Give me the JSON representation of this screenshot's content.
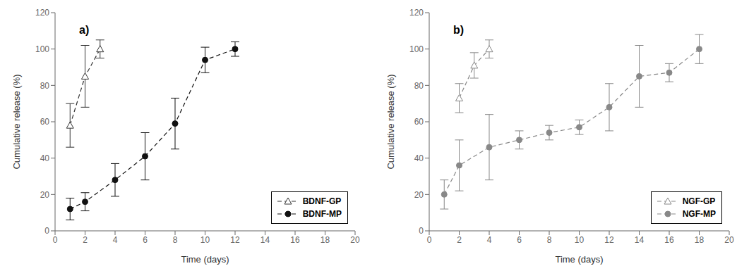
{
  "chart_data": [
    {
      "type": "line",
      "title": "a)",
      "xlabel": "Time (days)",
      "ylabel": "Cumulative release (%)",
      "xlim": [
        0,
        20
      ],
      "ylim": [
        0,
        120
      ],
      "xticks": [
        0,
        2,
        4,
        6,
        8,
        10,
        12,
        14,
        16,
        18,
        20
      ],
      "yticks": [
        0,
        20,
        40,
        60,
        80,
        100,
        120
      ],
      "grid": false,
      "legend": "lower right",
      "series": [
        {
          "name": "BDNF-GP",
          "color": "#333333",
          "marker": "triangle",
          "line_style": "dashed",
          "x": [
            1,
            2,
            3
          ],
          "values": [
            58,
            85,
            100
          ],
          "yerr": [
            12,
            17,
            5
          ]
        },
        {
          "name": "BDNF-MP",
          "color": "#111111",
          "marker": "circle",
          "line_style": "dashed",
          "x": [
            1,
            2,
            4,
            6,
            8,
            10,
            12
          ],
          "values": [
            12,
            16,
            28,
            41,
            59,
            94,
            100
          ],
          "yerr": [
            6,
            5,
            9,
            13,
            14,
            7,
            4
          ]
        }
      ]
    },
    {
      "type": "line",
      "title": "b)",
      "xlabel": "Time (days)",
      "ylabel": "Cumulative release (%)",
      "xlim": [
        0,
        20
      ],
      "ylim": [
        0,
        120
      ],
      "xticks": [
        0,
        2,
        4,
        6,
        8,
        10,
        12,
        14,
        16,
        18,
        20
      ],
      "yticks": [
        0,
        20,
        40,
        60,
        80,
        100,
        120
      ],
      "grid": false,
      "legend": "lower right",
      "series": [
        {
          "name": "NGF-GP",
          "color": "#888888",
          "marker": "triangle",
          "line_style": "dashed",
          "x": [
            2,
            3,
            4
          ],
          "values": [
            73,
            91,
            100
          ],
          "yerr": [
            8,
            7,
            5
          ]
        },
        {
          "name": "NGF-MP",
          "color": "#888888",
          "marker": "circle",
          "line_style": "dashed",
          "x": [
            1,
            2,
            4,
            6,
            8,
            10,
            12,
            14,
            16,
            18
          ],
          "values": [
            20,
            36,
            46,
            50,
            54,
            57,
            68,
            85,
            87,
            100
          ],
          "yerr": [
            8,
            14,
            18,
            5,
            4,
            4,
            13,
            17,
            5,
            8
          ]
        }
      ]
    }
  ]
}
